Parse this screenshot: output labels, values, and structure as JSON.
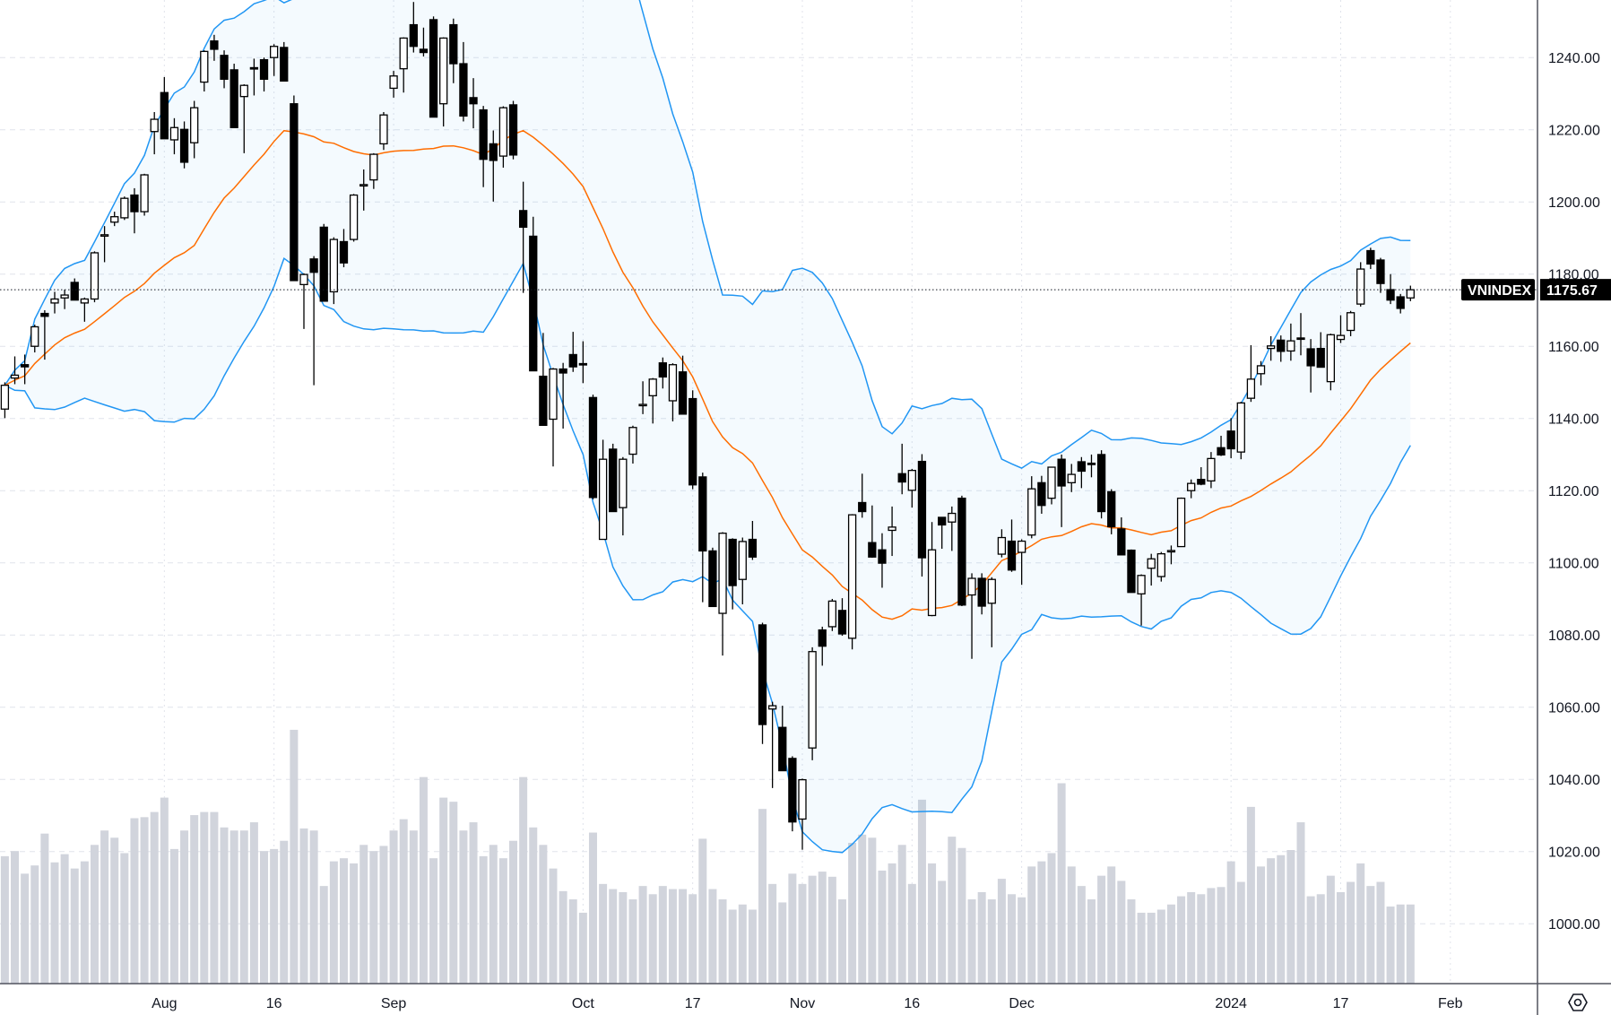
{
  "chart_data": {
    "type": "candlestick",
    "symbol": "VNINDEX",
    "last_price": "1175.67",
    "ylim": [
      983.5,
      1256
    ],
    "y_ticks": [
      "1000.00",
      "1020.00",
      "1040.00",
      "1060.00",
      "1080.00",
      "1100.00",
      "1120.00",
      "1140.00",
      "1160.00",
      "1180.00",
      "1200.00",
      "1220.00",
      "1240.00"
    ],
    "x_ticks": [
      {
        "label": "Aug",
        "bar": 16
      },
      {
        "label": "16",
        "bar": 27
      },
      {
        "label": "Sep",
        "bar": 39
      },
      {
        "label": "Oct",
        "bar": 58
      },
      {
        "label": "17",
        "bar": 69
      },
      {
        "label": "Nov",
        "bar": 80
      },
      {
        "label": "16",
        "bar": 91
      },
      {
        "label": "Dec",
        "bar": 102
      },
      {
        "label": "2024",
        "bar": 123
      },
      {
        "label": "17",
        "bar": 134
      },
      {
        "label": "Feb",
        "bar": 145
      }
    ],
    "ohlc_fields": [
      "open",
      "high",
      "low",
      "close"
    ],
    "candles": [
      [
        1142.6,
        1150.0,
        1140.1,
        1149.2
      ],
      [
        1151.2,
        1157.2,
        1149.5,
        1152.0
      ],
      [
        1154.9,
        1157.7,
        1149.5,
        1154.3
      ],
      [
        1160.0,
        1166.0,
        1158.3,
        1165.4
      ],
      [
        1169.1,
        1170.0,
        1156.3,
        1168.3
      ],
      [
        1172.0,
        1175.1,
        1169.1,
        1173.1
      ],
      [
        1173.4,
        1175.7,
        1170.3,
        1174.2
      ],
      [
        1177.7,
        1178.8,
        1172.8,
        1172.8
      ],
      [
        1172.0,
        1173.5,
        1166.8,
        1173.1
      ],
      [
        1173.1,
        1186.3,
        1172.2,
        1185.9
      ],
      [
        1190.6,
        1193.3,
        1183.3,
        1190.9
      ],
      [
        1194.4,
        1197.3,
        1193.3,
        1195.9
      ],
      [
        1195.6,
        1201.5,
        1195.0,
        1201.0
      ],
      [
        1201.9,
        1203.8,
        1191.3,
        1197.3
      ],
      [
        1197.3,
        1207.8,
        1196.2,
        1207.5
      ],
      [
        1219.5,
        1224.9,
        1213.2,
        1222.9
      ],
      [
        1230.3,
        1234.6,
        1217.5,
        1217.5
      ],
      [
        1217.2,
        1223.2,
        1213.2,
        1220.6
      ],
      [
        1220.1,
        1222.3,
        1209.3,
        1211.0
      ],
      [
        1216.4,
        1228.0,
        1212.1,
        1226.1
      ],
      [
        1233.2,
        1242.0,
        1230.6,
        1241.7
      ],
      [
        1244.6,
        1246.3,
        1239.1,
        1242.3
      ],
      [
        1240.6,
        1242.0,
        1231.5,
        1234.0
      ],
      [
        1236.6,
        1238.3,
        1220.6,
        1220.6
      ],
      [
        1229.2,
        1232.6,
        1213.5,
        1232.3
      ],
      [
        1237.2,
        1239.7,
        1229.5,
        1237.0
      ],
      [
        1239.4,
        1240.0,
        1230.6,
        1234.0
      ],
      [
        1240.0,
        1243.7,
        1234.9,
        1243.1
      ],
      [
        1242.8,
        1244.3,
        1233.5,
        1233.5
      ],
      [
        1227.2,
        1229.5,
        1178.2,
        1178.2
      ],
      [
        1177.1,
        1180.2,
        1164.8,
        1179.9
      ],
      [
        1184.2,
        1185.0,
        1149.2,
        1180.5
      ],
      [
        1193.0,
        1193.9,
        1172.5,
        1172.5
      ],
      [
        1175.1,
        1190.2,
        1171.7,
        1189.6
      ],
      [
        1189.0,
        1192.5,
        1181.9,
        1183.1
      ],
      [
        1189.6,
        1202.2,
        1189.0,
        1201.9
      ],
      [
        1204.6,
        1209.0,
        1197.6,
        1204.8
      ],
      [
        1206.1,
        1213.5,
        1203.6,
        1213.2
      ],
      [
        1216.1,
        1224.9,
        1214.4,
        1224.1
      ],
      [
        1231.5,
        1236.3,
        1228.9,
        1234.9
      ],
      [
        1236.9,
        1245.6,
        1230.3,
        1245.4
      ],
      [
        1249.1,
        1255.4,
        1241.4,
        1243.1
      ],
      [
        1242.3,
        1248.3,
        1240.3,
        1241.4
      ],
      [
        1250.5,
        1251.4,
        1223.5,
        1223.5
      ],
      [
        1227.2,
        1245.6,
        1220.9,
        1245.4
      ],
      [
        1249.1,
        1250.8,
        1232.9,
        1238.3
      ],
      [
        1238.3,
        1244.3,
        1222.3,
        1223.8
      ],
      [
        1228.9,
        1234.3,
        1220.4,
        1227.2
      ],
      [
        1225.5,
        1226.6,
        1204.1,
        1211.8
      ],
      [
        1216.1,
        1219.8,
        1200.1,
        1211.5
      ],
      [
        1212.7,
        1226.5,
        1209.5,
        1226.1
      ],
      [
        1226.9,
        1228.0,
        1211.8,
        1213.0
      ],
      [
        1197.6,
        1205.6,
        1174.8,
        1193.0
      ],
      [
        1190.5,
        1195.9,
        1153.2,
        1153.2
      ],
      [
        1151.7,
        1163.7,
        1138.0,
        1138.1
      ],
      [
        1139.8,
        1154.0,
        1126.7,
        1153.7
      ],
      [
        1153.7,
        1155.4,
        1137.2,
        1152.6
      ],
      [
        1157.7,
        1164.0,
        1152.9,
        1154.3
      ],
      [
        1155.2,
        1161.4,
        1149.8,
        1155.0
      ],
      [
        1145.8,
        1146.6,
        1117.6,
        1118.1
      ],
      [
        1106.5,
        1134.1,
        1106.5,
        1128.7
      ],
      [
        1131.5,
        1133.0,
        1114.2,
        1114.2
      ],
      [
        1115.3,
        1129.3,
        1107.6,
        1128.7
      ],
      [
        1130.1,
        1138.0,
        1127.5,
        1137.5
      ],
      [
        1143.8,
        1150.3,
        1141.2,
        1143.9
      ],
      [
        1146.3,
        1151.2,
        1138.6,
        1150.9
      ],
      [
        1155.4,
        1156.9,
        1148.3,
        1151.5
      ],
      [
        1144.9,
        1155.3,
        1139.2,
        1154.9
      ],
      [
        1152.9,
        1157.4,
        1141.2,
        1141.2
      ],
      [
        1145.5,
        1147.8,
        1120.4,
        1121.6
      ],
      [
        1123.8,
        1125.0,
        1089.1,
        1103.3
      ],
      [
        1103.3,
        1104.2,
        1087.9,
        1087.9
      ],
      [
        1086.0,
        1108.5,
        1074.3,
        1108.2
      ],
      [
        1106.5,
        1106.8,
        1087.1,
        1093.7
      ],
      [
        1095.4,
        1107.0,
        1088.5,
        1105.9
      ],
      [
        1106.5,
        1111.6,
        1100.8,
        1101.6
      ],
      [
        1082.8,
        1083.4,
        1049.8,
        1055.2
      ],
      [
        1059.5,
        1061.5,
        1037.6,
        1060.4
      ],
      [
        1054.4,
        1060.4,
        1042.4,
        1042.4
      ],
      [
        1045.8,
        1046.4,
        1025.6,
        1028.2
      ],
      [
        1029.0,
        1040.2,
        1020.5,
        1039.9
      ],
      [
        1048.7,
        1076.6,
        1045.3,
        1075.4
      ],
      [
        1081.4,
        1082.3,
        1071.5,
        1076.9
      ],
      [
        1082.3,
        1090.0,
        1081.1,
        1089.4
      ],
      [
        1086.8,
        1090.2,
        1079.8,
        1080.3
      ],
      [
        1079.1,
        1113.5,
        1076.0,
        1113.3
      ],
      [
        1116.7,
        1124.7,
        1112.5,
        1114.2
      ],
      [
        1105.6,
        1115.9,
        1101.4,
        1101.6
      ],
      [
        1103.6,
        1108.2,
        1093.1,
        1099.9
      ],
      [
        1109.0,
        1115.6,
        1101.9,
        1109.9
      ],
      [
        1124.7,
        1133.0,
        1119.0,
        1122.4
      ],
      [
        1120.1,
        1126.0,
        1115.3,
        1125.6
      ],
      [
        1128.1,
        1130.1,
        1096.2,
        1101.4
      ],
      [
        1085.4,
        1111.3,
        1085.2,
        1103.6
      ],
      [
        1112.6,
        1112.7,
        1103.9,
        1110.5
      ],
      [
        1111.3,
        1115.6,
        1103.3,
        1113.7
      ],
      [
        1117.9,
        1118.6,
        1088.0,
        1088.3
      ],
      [
        1091.1,
        1097.1,
        1073.4,
        1095.7
      ],
      [
        1095.7,
        1097.1,
        1085.7,
        1088.0
      ],
      [
        1088.8,
        1096.0,
        1076.6,
        1095.4
      ],
      [
        1102.4,
        1109.3,
        1101.5,
        1107.0
      ],
      [
        1106.0,
        1112.0,
        1097.5,
        1098.0
      ],
      [
        1102.9,
        1106.5,
        1093.9,
        1106.0
      ],
      [
        1107.7,
        1124.0,
        1106.8,
        1120.5
      ],
      [
        1122.2,
        1124.1,
        1113.6,
        1115.9
      ],
      [
        1117.9,
        1126.6,
        1116.2,
        1126.5
      ],
      [
        1128.7,
        1130.0,
        1109.9,
        1121.3
      ],
      [
        1122.2,
        1127.4,
        1119.6,
        1124.5
      ],
      [
        1128.0,
        1129.3,
        1120.7,
        1125.4
      ],
      [
        1127.6,
        1130.0,
        1123.7,
        1127.5
      ],
      [
        1130.0,
        1131.2,
        1112.3,
        1114.2
      ],
      [
        1119.7,
        1120.4,
        1107.9,
        1110.0
      ],
      [
        1109.4,
        1112.6,
        1102.2,
        1102.2
      ],
      [
        1103.5,
        1103.7,
        1091.8,
        1091.8
      ],
      [
        1091.4,
        1096.8,
        1082.6,
        1096.5
      ],
      [
        1098.5,
        1102.5,
        1093.7,
        1101.1
      ],
      [
        1096.2,
        1103.0,
        1094.8,
        1102.5
      ],
      [
        1103.3,
        1104.8,
        1099.6,
        1103.4
      ],
      [
        1104.5,
        1118.1,
        1104.5,
        1117.9
      ],
      [
        1120.0,
        1123.1,
        1117.9,
        1122.0
      ],
      [
        1123.1,
        1126.5,
        1121.5,
        1121.8
      ],
      [
        1122.7,
        1130.7,
        1120.7,
        1128.9
      ],
      [
        1131.9,
        1135.2,
        1129.6,
        1129.9
      ],
      [
        1136.5,
        1140.1,
        1129.0,
        1131.6
      ],
      [
        1130.7,
        1144.6,
        1128.7,
        1144.3
      ],
      [
        1145.6,
        1160.3,
        1144.6,
        1150.9
      ],
      [
        1152.4,
        1155.9,
        1149.2,
        1154.6
      ],
      [
        1159.4,
        1162.8,
        1156.0,
        1160.1
      ],
      [
        1161.7,
        1163.0,
        1155.7,
        1158.6
      ],
      [
        1158.7,
        1166.3,
        1156.0,
        1161.5
      ],
      [
        1162.3,
        1169.2,
        1157.5,
        1162.0
      ],
      [
        1159.3,
        1162.0,
        1147.2,
        1154.6
      ],
      [
        1159.4,
        1163.9,
        1154.2,
        1154.2
      ],
      [
        1150.2,
        1163.5,
        1147.8,
        1163.2
      ],
      [
        1161.9,
        1168.6,
        1160.9,
        1163.0
      ],
      [
        1164.4,
        1169.8,
        1162.8,
        1169.3
      ],
      [
        1171.7,
        1183.3,
        1171.0,
        1181.4
      ],
      [
        1186.5,
        1187.3,
        1181.4,
        1182.8
      ],
      [
        1183.9,
        1184.5,
        1174.8,
        1177.4
      ],
      [
        1175.7,
        1180.0,
        1171.7,
        1172.8
      ],
      [
        1173.7,
        1174.5,
        1169.1,
        1170.5
      ],
      [
        1173.4,
        1176.8,
        1172.5,
        1175.67
      ]
    ],
    "volume": [
      124,
      129,
      107,
      115,
      146,
      118,
      126,
      112,
      119,
      135,
      149,
      142,
      127,
      161,
      162,
      167,
      181,
      131,
      149,
      164,
      167,
      167,
      152,
      149,
      149,
      157,
      129,
      131,
      139,
      247,
      151,
      149,
      95,
      119,
      122,
      117,
      135,
      129,
      134,
      149,
      160,
      149,
      201,
      122,
      181,
      177,
      149,
      157,
      124,
      135,
      122,
      139,
      201,
      152,
      135,
      112,
      90,
      82,
      69,
      147,
      97,
      92,
      89,
      82,
      95,
      87,
      95,
      92,
      92,
      87,
      141,
      92,
      82,
      72,
      77,
      72,
      170,
      97,
      79,
      107,
      97,
      105,
      109,
      104,
      82,
      137,
      145,
      142,
      110,
      117,
      135,
      97,
      179,
      117,
      100,
      143,
      132,
      82,
      89,
      82,
      102,
      87,
      84,
      114,
      119,
      127,
      195,
      114,
      95,
      82,
      105,
      114,
      100,
      82,
      69,
      69,
      72,
      77,
      85,
      89,
      87,
      93,
      94,
      119,
      99,
      172,
      114,
      122,
      125,
      130,
      157,
      85,
      87,
      105,
      89,
      99,
      117,
      95,
      99,
      75,
      77,
      77
    ],
    "grid": true,
    "colors": {
      "up_fill": "#ffffff",
      "down_fill": "#000000",
      "wick": "#000000",
      "band": "#2196f3",
      "band_fill": "#2196f3",
      "basis": "#ff6d00",
      "volume": "#d1d4dc",
      "grid": "#e0e3eb",
      "axis": "#50535e"
    }
  }
}
